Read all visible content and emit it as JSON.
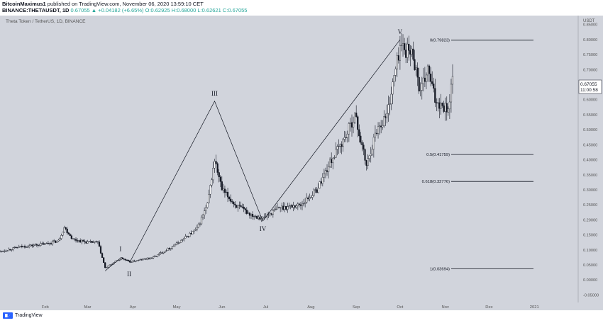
{
  "header": {
    "author": "BitcoinMaximus1",
    "published": "published on TradingView.com, November 06, 2020 13:59:10 CET",
    "symbol": "BINANCE:THETAUSDT, 1D",
    "price": "0.67055",
    "change": "▲ +0.04182 (+6.65%)",
    "ohlc": "O:0.62925 H:0.68000 L:0.62621 C:0.67055"
  },
  "chart_data": {
    "type": "candlestick",
    "title": "Theta Token / TetherUS, 1D, BINANCE",
    "currency_label": "USDT",
    "y_ticks": [
      "0.85000",
      "0.80000",
      "0.75000",
      "0.70000",
      "0.65000",
      "0.60000",
      "0.55000",
      "0.50000",
      "0.45000",
      "0.40000",
      "0.35000",
      "0.30000",
      "0.25000",
      "0.20000",
      "0.15000",
      "0.10000",
      "0.05000",
      "0.00000",
      "-0.05000"
    ],
    "ylim": [
      -0.075,
      0.88
    ],
    "x_ticks": [
      "Feb",
      "Mar",
      "Apr",
      "May",
      "Jun",
      "Jul",
      "Aug",
      "Sep",
      "Oct",
      "Nov",
      "Dec",
      "2021"
    ],
    "last_price": "0.67055",
    "countdown": "11:00:58",
    "waves": [
      {
        "label": "I",
        "x": "2020-03-24",
        "y": 0.072
      },
      {
        "label": "II",
        "x": "2020-03-30",
        "y": 0.045
      },
      {
        "label": "III",
        "x": "2020-05-27",
        "y": 0.595
      },
      {
        "label": "IV",
        "x": "2020-06-29",
        "y": 0.196
      },
      {
        "label": "V",
        "x": "2020-10-01",
        "y": 0.8
      }
    ],
    "wave_path": [
      {
        "x": "2020-03-13",
        "y": 0.03
      },
      {
        "x": "2020-03-24",
        "y": 0.075
      },
      {
        "x": "2020-03-30",
        "y": 0.06
      },
      {
        "x": "2020-05-27",
        "y": 0.595
      },
      {
        "x": "2020-06-29",
        "y": 0.196
      },
      {
        "x": "2020-10-01",
        "y": 0.8
      }
    ],
    "fib_levels": [
      {
        "label": "0(0.79823)",
        "value": 0.79823
      },
      {
        "label": "0.5(0.41759)",
        "value": 0.41759
      },
      {
        "label": "0.618(0.32776)",
        "value": 0.32776
      },
      {
        "label": "1(0.03694)",
        "value": 0.03694
      }
    ],
    "price_path": [
      {
        "x": "2020-01-01",
        "y": 0.095
      },
      {
        "x": "2020-01-15",
        "y": 0.11
      },
      {
        "x": "2020-02-01",
        "y": 0.12
      },
      {
        "x": "2020-02-10",
        "y": 0.13
      },
      {
        "x": "2020-02-14",
        "y": 0.175
      },
      {
        "x": "2020-02-20",
        "y": 0.135
      },
      {
        "x": "2020-03-01",
        "y": 0.125
      },
      {
        "x": "2020-03-08",
        "y": 0.125
      },
      {
        "x": "2020-03-13",
        "y": 0.04
      },
      {
        "x": "2020-03-24",
        "y": 0.072
      },
      {
        "x": "2020-03-30",
        "y": 0.06
      },
      {
        "x": "2020-04-15",
        "y": 0.075
      },
      {
        "x": "2020-05-01",
        "y": 0.12
      },
      {
        "x": "2020-05-15",
        "y": 0.17
      },
      {
        "x": "2020-05-22",
        "y": 0.25
      },
      {
        "x": "2020-05-27",
        "y": 0.4
      },
      {
        "x": "2020-06-01",
        "y": 0.3
      },
      {
        "x": "2020-06-10",
        "y": 0.25
      },
      {
        "x": "2020-06-20",
        "y": 0.22
      },
      {
        "x": "2020-06-29",
        "y": 0.205
      },
      {
        "x": "2020-07-10",
        "y": 0.24
      },
      {
        "x": "2020-07-25",
        "y": 0.25
      },
      {
        "x": "2020-08-05",
        "y": 0.3
      },
      {
        "x": "2020-08-15",
        "y": 0.4
      },
      {
        "x": "2020-08-25",
        "y": 0.48
      },
      {
        "x": "2020-08-31",
        "y": 0.55
      },
      {
        "x": "2020-09-08",
        "y": 0.38
      },
      {
        "x": "2020-09-15",
        "y": 0.5
      },
      {
        "x": "2020-09-22",
        "y": 0.55
      },
      {
        "x": "2020-09-28",
        "y": 0.7
      },
      {
        "x": "2020-10-01",
        "y": 0.78
      },
      {
        "x": "2020-10-10",
        "y": 0.75
      },
      {
        "x": "2020-10-15",
        "y": 0.62
      },
      {
        "x": "2020-10-20",
        "y": 0.7
      },
      {
        "x": "2020-10-25",
        "y": 0.6
      },
      {
        "x": "2020-11-03",
        "y": 0.57
      },
      {
        "x": "2020-11-06",
        "y": 0.67
      }
    ]
  },
  "footer": {
    "brand": "TradingView"
  }
}
